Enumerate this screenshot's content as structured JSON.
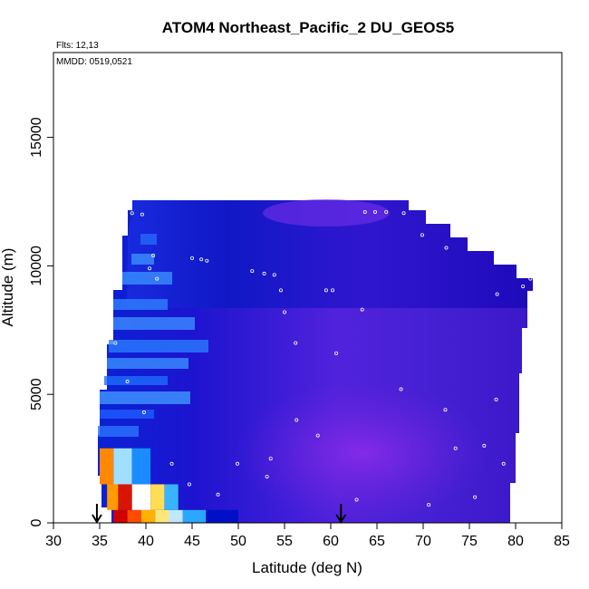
{
  "chart_data": {
    "type": "heatmap",
    "title": "ATOM4 Northeast_Pacific_2 DU_GEOS5",
    "annotations": {
      "flights": "Flts: 12,13",
      "dates": "MMDD: 0519,0521"
    },
    "xlabel": "Latitude (deg N)",
    "ylabel": "Altitude (m)",
    "xlim": [
      30,
      85
    ],
    "ylim": [
      0,
      18300
    ],
    "x_ticks": [
      "30",
      "35",
      "40",
      "45",
      "50",
      "55",
      "60",
      "65",
      "70",
      "75",
      "80",
      "85"
    ],
    "y_ticks": [
      "0",
      "5000",
      "10000",
      "15000"
    ],
    "grid": false,
    "legend": "none",
    "colors": {
      "high": "#cc0000",
      "mid_high": "#ffcc00",
      "mid": "#ffffff",
      "low_mid": "#33aaff",
      "low": "#0000bb",
      "lowest": "#8a2be2",
      "obs_points": "#ffffff",
      "arrows": "#000000"
    },
    "arrows_at_latitude": [
      34.7,
      61.1
    ],
    "observation_tracks": [
      {
        "lat": 37.5,
        "alt": 12100
      },
      {
        "lat": 38.5,
        "alt": 12050
      },
      {
        "lat": 39.6,
        "alt": 12000
      },
      {
        "lat": 40.8,
        "alt": 10400
      },
      {
        "lat": 40.4,
        "alt": 9900
      },
      {
        "lat": 41.2,
        "alt": 9500
      },
      {
        "lat": 45.0,
        "alt": 10300
      },
      {
        "lat": 46.0,
        "alt": 10250
      },
      {
        "lat": 46.6,
        "alt": 10200
      },
      {
        "lat": 51.5,
        "alt": 9800
      },
      {
        "lat": 52.8,
        "alt": 9700
      },
      {
        "lat": 53.9,
        "alt": 9650
      },
      {
        "lat": 54.6,
        "alt": 9050
      },
      {
        "lat": 59.5,
        "alt": 9050
      },
      {
        "lat": 60.2,
        "alt": 9050
      },
      {
        "lat": 63.7,
        "alt": 12100
      },
      {
        "lat": 64.8,
        "alt": 12100
      },
      {
        "lat": 66.0,
        "alt": 12100
      },
      {
        "lat": 67.9,
        "alt": 12050
      },
      {
        "lat": 69.9,
        "alt": 11200
      },
      {
        "lat": 72.5,
        "alt": 10700
      },
      {
        "lat": 78.0,
        "alt": 8900
      },
      {
        "lat": 80.8,
        "alt": 9200
      },
      {
        "lat": 81.6,
        "alt": 9500
      },
      {
        "lat": 36.7,
        "alt": 7000
      },
      {
        "lat": 38.0,
        "alt": 5500
      },
      {
        "lat": 39.8,
        "alt": 4300
      },
      {
        "lat": 42.8,
        "alt": 2300
      },
      {
        "lat": 44.7,
        "alt": 1500
      },
      {
        "lat": 47.8,
        "alt": 1100
      },
      {
        "lat": 49.9,
        "alt": 2300
      },
      {
        "lat": 53.5,
        "alt": 2500
      },
      {
        "lat": 56.3,
        "alt": 4000
      },
      {
        "lat": 58.6,
        "alt": 3400
      },
      {
        "lat": 60.6,
        "alt": 6600
      },
      {
        "lat": 63.4,
        "alt": 8300
      },
      {
        "lat": 67.6,
        "alt": 5200
      },
      {
        "lat": 72.4,
        "alt": 4400
      },
      {
        "lat": 73.5,
        "alt": 2900
      },
      {
        "lat": 76.6,
        "alt": 3000
      },
      {
        "lat": 78.7,
        "alt": 2300
      },
      {
        "lat": 77.9,
        "alt": 4800
      },
      {
        "lat": 56.2,
        "alt": 7000
      },
      {
        "lat": 55.0,
        "alt": 8200
      },
      {
        "lat": 62.8,
        "alt": 900
      },
      {
        "lat": 70.6,
        "alt": 700
      },
      {
        "lat": 75.6,
        "alt": 1000
      },
      {
        "lat": 53.1,
        "alt": 1800
      }
    ],
    "columns": [
      {
        "lat": [
          36.5,
          38.0
        ],
        "bottom": 0,
        "top": 500,
        "color": "#d10000"
      },
      {
        "lat": [
          38.0,
          39.5
        ],
        "bottom": 0,
        "top": 500,
        "color": "#ff4a00"
      },
      {
        "lat": [
          39.5,
          41.0
        ],
        "bottom": 0,
        "top": 500,
        "color": "#ffb000"
      },
      {
        "lat": [
          41.0,
          42.5
        ],
        "bottom": 0,
        "top": 500,
        "color": "#ffe67a"
      },
      {
        "lat": [
          42.5,
          44.0
        ],
        "bottom": 0,
        "top": 500,
        "color": "#bfe8ff"
      },
      {
        "lat": [
          44.0,
          46.5
        ],
        "bottom": 0,
        "top": 500,
        "color": "#2aa8ff"
      },
      {
        "lat": [
          46.5,
          50.0
        ],
        "bottom": 0,
        "top": 500,
        "color": "#0010c8"
      },
      {
        "lat": [
          35.8,
          37.0
        ],
        "bottom": 500,
        "top": 1500,
        "color": "#ff9a00"
      },
      {
        "lat": [
          37.0,
          38.5
        ],
        "bottom": 500,
        "top": 1500,
        "color": "#d81500"
      },
      {
        "lat": [
          38.5,
          40.5
        ],
        "bottom": 500,
        "top": 1500,
        "color": "#ffffff"
      },
      {
        "lat": [
          40.5,
          42.0
        ],
        "bottom": 500,
        "top": 1500,
        "color": "#ffdd55"
      },
      {
        "lat": [
          42.0,
          43.5
        ],
        "bottom": 500,
        "top": 1500,
        "color": "#3ab4ff"
      },
      {
        "lat": [
          35.0,
          36.5
        ],
        "bottom": 1500,
        "top": 2900,
        "color": "#ff8800"
      },
      {
        "lat": [
          36.5,
          38.5
        ],
        "bottom": 1500,
        "top": 2900,
        "color": "#9fe0ff"
      },
      {
        "lat": [
          38.5,
          40.5
        ],
        "bottom": 1500,
        "top": 2900,
        "color": "#1a8cff"
      }
    ]
  }
}
